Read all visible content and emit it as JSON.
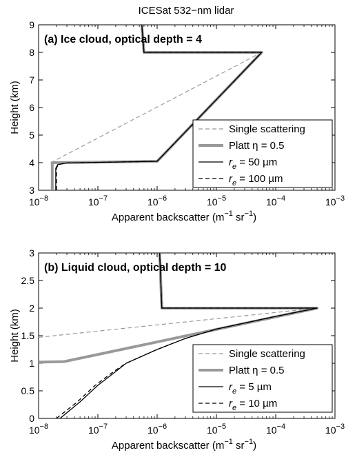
{
  "figure": {
    "title": "ICESat 532−nm lidar"
  },
  "chart_data": [
    {
      "type": "line",
      "panel_title": "(a) Ice cloud, optical depth = 4",
      "xlabel": "Apparent backscatter (m",
      "xlabel_sup1": "−1",
      "xlabel_mid": " sr",
      "xlabel_sup2": "−1",
      "xlabel_end": ")",
      "ylabel": "Height (km)",
      "xscale": "log",
      "xlim": [
        1e-08,
        0.001
      ],
      "ylim": [
        3,
        9
      ],
      "xticks": [
        1e-08,
        1e-07,
        1e-06,
        1e-05,
        0.0001,
        0.001
      ],
      "xticklabels": [
        [
          "10",
          "−8"
        ],
        [
          "10",
          "−7"
        ],
        [
          "10",
          "−6"
        ],
        [
          "10",
          "−5"
        ],
        [
          "10",
          "−4"
        ],
        [
          "10",
          "−3"
        ]
      ],
      "yticks": [
        3,
        4,
        5,
        6,
        7,
        8,
        9
      ],
      "yticklabels": [
        "3",
        "4",
        "5",
        "6",
        "7",
        "8",
        "9"
      ],
      "legend_position": "lower-right",
      "series": [
        {
          "name": "Single scattering",
          "color": "#999999",
          "width": 1.2,
          "dash": "6,4",
          "points": [
            [
              1.6e-08,
              4.0
            ],
            [
              5.8e-05,
              8.0
            ],
            [
              6e-07,
              8.0
            ],
            [
              5.5e-07,
              9.0
            ]
          ]
        },
        {
          "name": "Platt η = 0.5",
          "color": "#999999",
          "width": 4,
          "points": [
            [
              1.7e-08,
              3.0
            ],
            [
              1.7e-08,
              4.0
            ],
            [
              1e-06,
              4.05
            ],
            [
              5.8e-05,
              8.0
            ],
            [
              6e-07,
              8.0
            ],
            [
              5.5e-07,
              9.0
            ]
          ]
        },
        {
          "name": "r_e = 50 µm",
          "name_pre": "r",
          "name_sub": "e",
          "name_post": " = 50 µm",
          "color": "#000000",
          "width": 1.3,
          "points": [
            [
              1.95e-08,
              3.0
            ],
            [
              1.95e-08,
              3.8
            ],
            [
              2.1e-08,
              3.93
            ],
            [
              3e-08,
              3.99
            ],
            [
              1e-06,
              4.05
            ],
            [
              5.8e-05,
              8.0
            ],
            [
              6e-07,
              8.0
            ],
            [
              5.5e-07,
              9.0
            ]
          ]
        },
        {
          "name": "r_e = 100 µm",
          "name_pre": "r",
          "name_sub": "e",
          "name_post": " = 100 µm",
          "color": "#000000",
          "width": 1.3,
          "dash": "6,4",
          "points": [
            [
              2e-08,
              3.0
            ],
            [
              2e-08,
              3.8
            ],
            [
              2.15e-08,
              3.93
            ],
            [
              3e-08,
              3.99
            ],
            [
              1e-06,
              4.05
            ],
            [
              5.8e-05,
              8.0
            ],
            [
              6e-07,
              8.0
            ],
            [
              5.5e-07,
              9.0
            ]
          ]
        }
      ]
    },
    {
      "type": "line",
      "panel_title": "(b) Liquid cloud, optical depth = 10",
      "xlabel": "Apparent backscatter (m",
      "xlabel_sup1": "−1",
      "xlabel_mid": " sr",
      "xlabel_sup2": "−1",
      "xlabel_end": ")",
      "ylabel": "Height (km)",
      "xscale": "log",
      "xlim": [
        1e-08,
        0.001
      ],
      "ylim": [
        0,
        3
      ],
      "xticks": [
        1e-08,
        1e-07,
        1e-06,
        1e-05,
        0.0001,
        0.001
      ],
      "xticklabels": [
        [
          "10",
          "−8"
        ],
        [
          "10",
          "−7"
        ],
        [
          "10",
          "−6"
        ],
        [
          "10",
          "−5"
        ],
        [
          "10",
          "−4"
        ],
        [
          "10",
          "−3"
        ]
      ],
      "yticks": [
        0,
        0.5,
        1,
        1.5,
        2,
        2.5,
        3
      ],
      "yticklabels": [
        "0",
        "0.5",
        "1",
        "1.5",
        "2",
        "2.5",
        "3"
      ],
      "legend_position": "lower-right",
      "series": [
        {
          "name": "Single scattering",
          "color": "#999999",
          "width": 1.2,
          "dash": "6,4",
          "points": [
            [
              1e-08,
              1.47
            ],
            [
              0.0005,
              2.0
            ],
            [
              1.2e-06,
              2.0
            ],
            [
              1.1e-06,
              3.0
            ]
          ]
        },
        {
          "name": "Platt η = 0.5",
          "color": "#999999",
          "width": 4,
          "points": [
            [
              1e-08,
              1.02
            ],
            [
              2.7e-08,
              1.03
            ],
            [
              0.0005,
              2.0
            ],
            [
              1.2e-06,
              2.0
            ],
            [
              1.1e-06,
              3.0
            ]
          ]
        },
        {
          "name": "r_e = 5 µm",
          "name_pre": "r",
          "name_sub": "e",
          "name_post": " = 5 µm",
          "color": "#000000",
          "width": 1.3,
          "points": [
            [
              2.3e-08,
              0.0
            ],
            [
              5e-08,
              0.3
            ],
            [
              1e-07,
              0.6
            ],
            [
              2e-07,
              0.85
            ],
            [
              3e-07,
              1.0
            ],
            [
              1e-06,
              1.25
            ],
            [
              3e-06,
              1.45
            ],
            [
              1e-05,
              1.62
            ],
            [
              0.0001,
              1.85
            ],
            [
              0.0005,
              2.0
            ],
            [
              1.2e-06,
              2.0
            ],
            [
              1.1e-06,
              3.0
            ]
          ]
        },
        {
          "name": "r_e = 10 µm",
          "name_pre": "r",
          "name_sub": "e",
          "name_post": " = 10 µm",
          "color": "#000000",
          "width": 1.3,
          "dash": "6,4",
          "points": [
            [
              2e-08,
              0.0
            ],
            [
              4.5e-08,
              0.3
            ],
            [
              9e-08,
              0.6
            ],
            [
              1.9e-07,
              0.86
            ],
            [
              3e-07,
              1.0
            ],
            [
              1e-06,
              1.25
            ],
            [
              3e-06,
              1.45
            ],
            [
              1e-05,
              1.62
            ],
            [
              0.0001,
              1.85
            ],
            [
              0.0005,
              2.0
            ],
            [
              1.2e-06,
              2.0
            ],
            [
              1.1e-06,
              3.0
            ]
          ]
        }
      ]
    }
  ]
}
